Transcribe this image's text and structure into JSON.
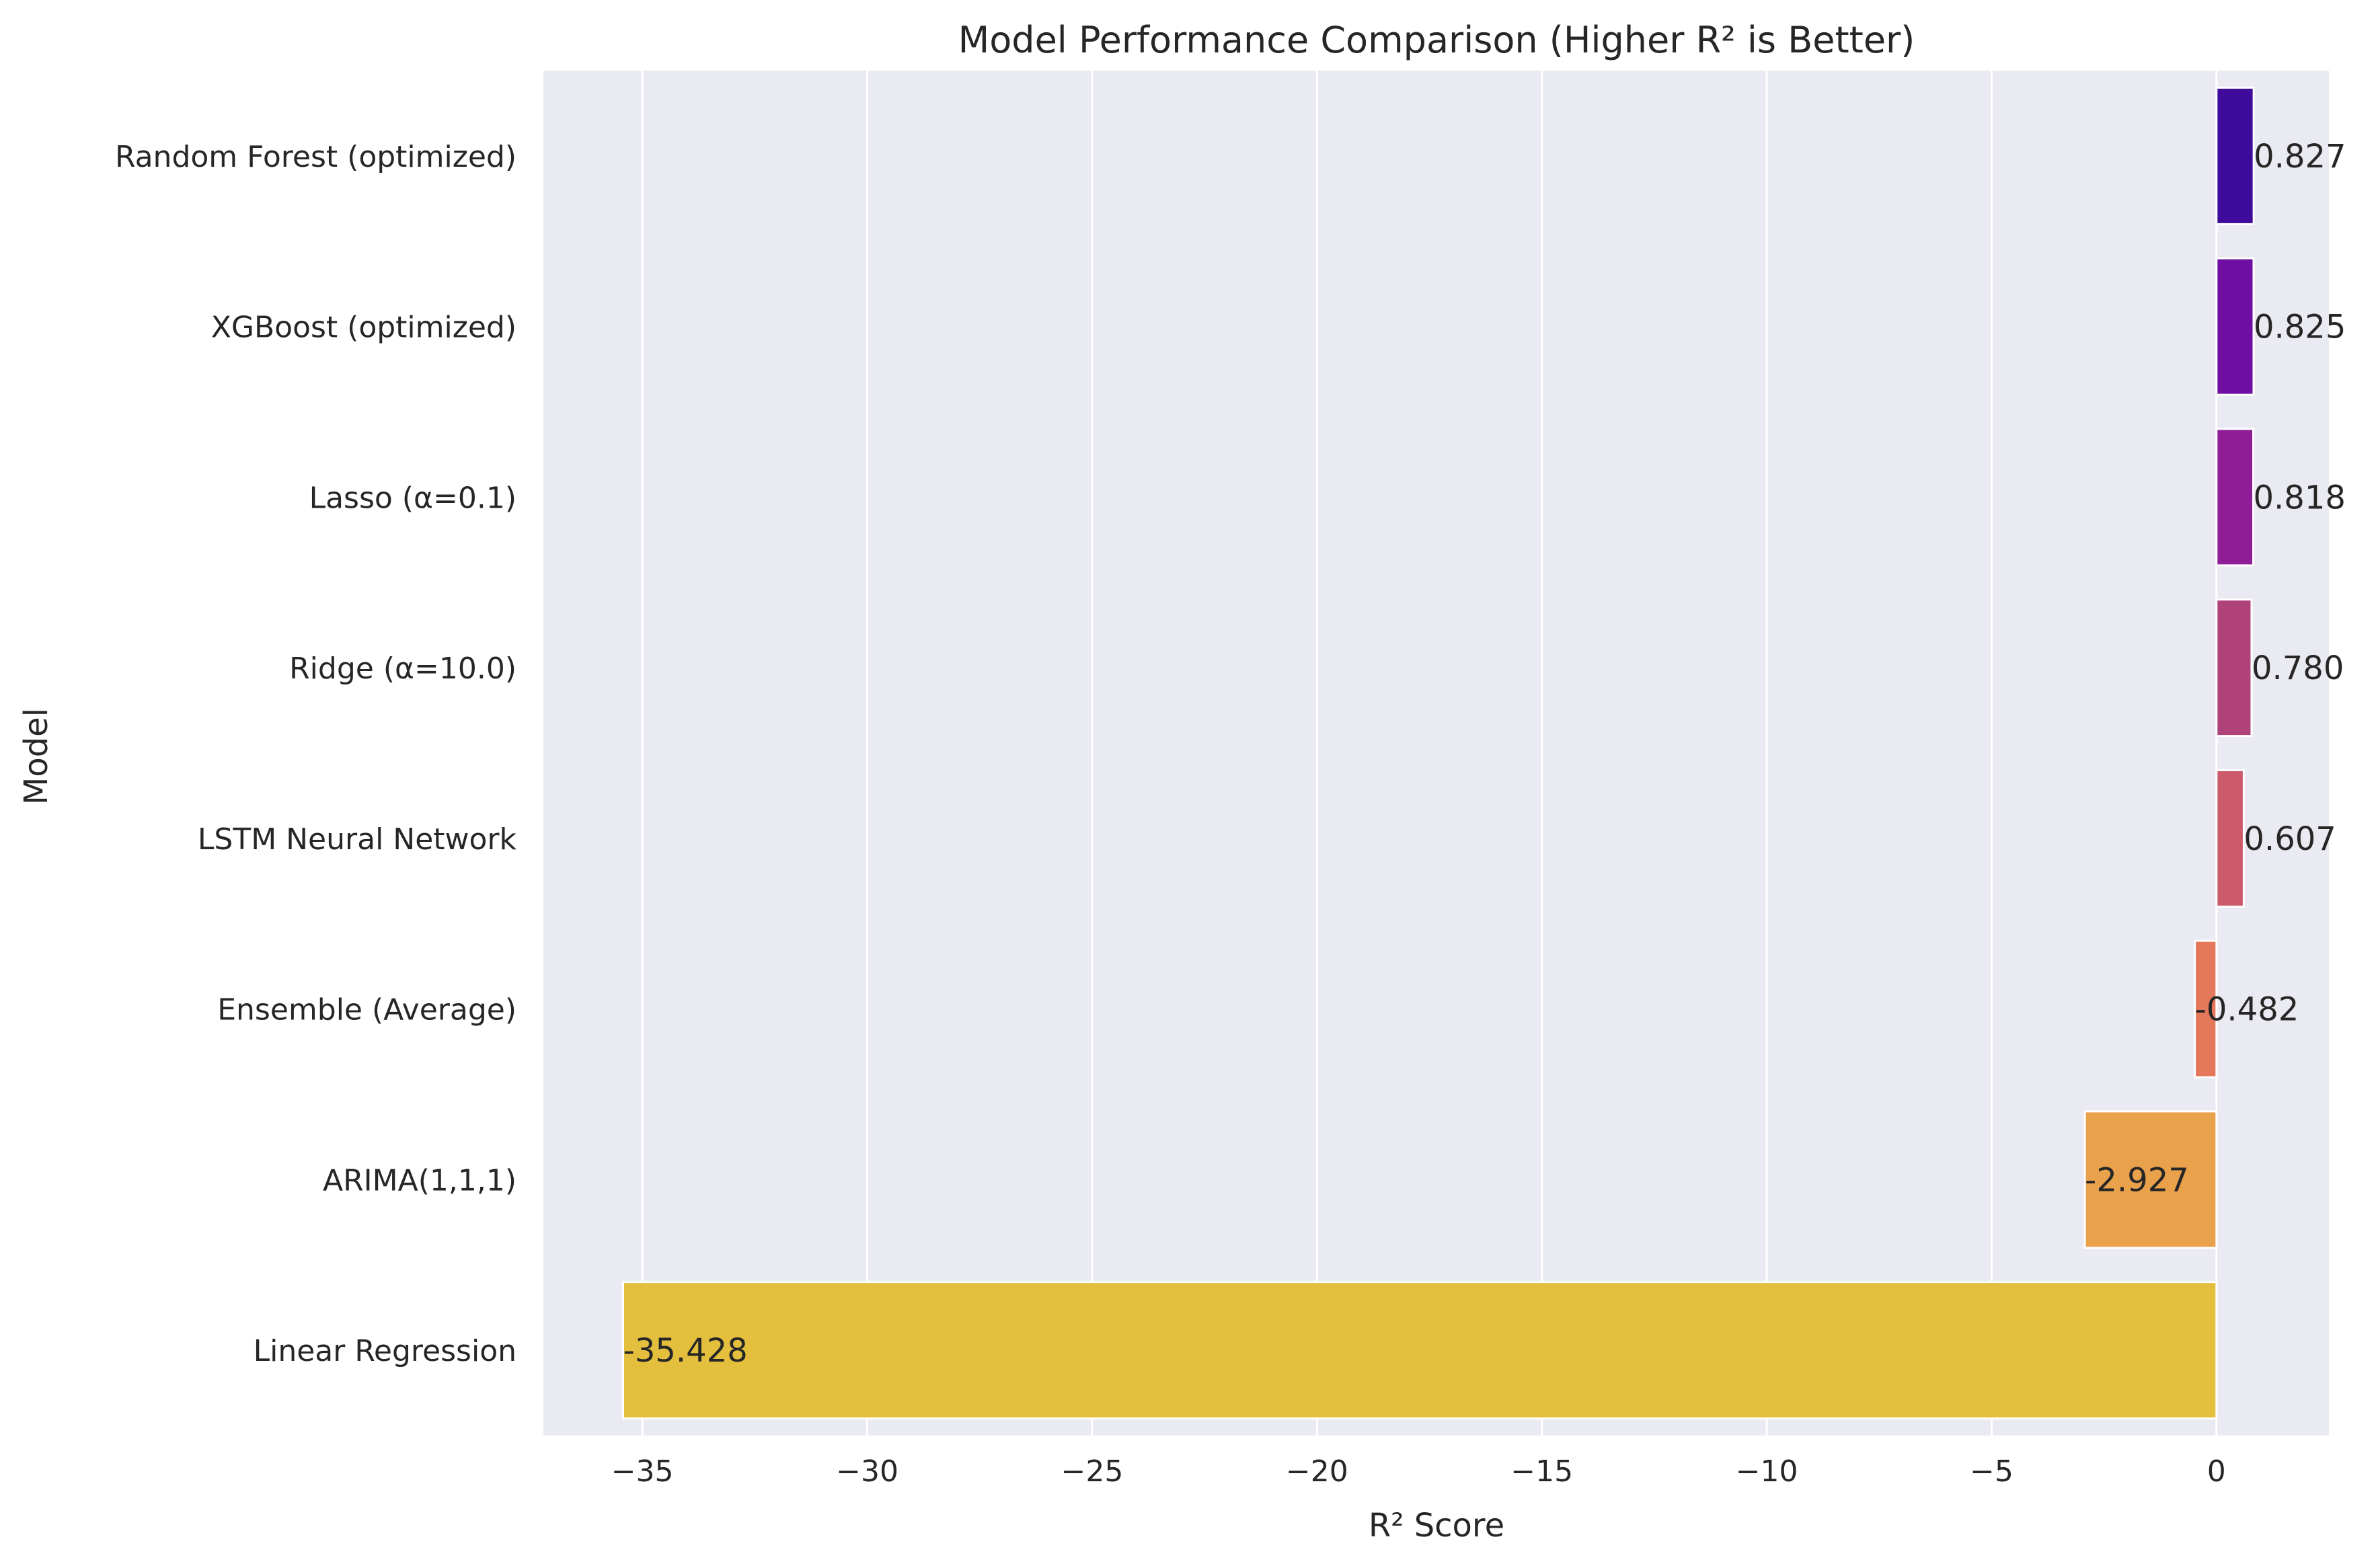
{
  "chart_data": {
    "type": "bar",
    "orientation": "horizontal",
    "title": "Model Performance Comparison (Higher R² is Better)",
    "xlabel": "R² Score",
    "ylabel": "Model",
    "xlim": [
      -37.2,
      2.5
    ],
    "xticks": [
      -35,
      -30,
      -25,
      -20,
      -15,
      -10,
      -5,
      0
    ],
    "xtick_labels": [
      "−35",
      "−30",
      "−25",
      "−20",
      "−15",
      "−10",
      "−5",
      "0"
    ],
    "grid": true,
    "legend": "none",
    "categories": [
      "Random Forest (optimized)",
      "XGBoost (optimized)",
      "Lasso (α=0.1)",
      "Ridge (α=10.0)",
      "LSTM Neural Network",
      "Ensemble (Average)",
      "ARIMA(1,1,1)",
      "Linear Regression"
    ],
    "values": [
      0.827,
      0.825,
      0.818,
      0.78,
      0.607,
      -0.482,
      -2.927,
      -35.428
    ],
    "data_labels": [
      "0.827",
      "0.825",
      "0.818",
      "0.780",
      "0.607",
      "-0.482",
      "-2.927",
      "-35.428"
    ],
    "colors": [
      "#3e0b9a",
      "#6e0ea2",
      "#8f1d97",
      "#b0427a",
      "#cc5a6a",
      "#e5785a",
      "#e9a14c",
      "#e4bf3e"
    ],
    "background_color": "#eaeaf2",
    "grid_color": "#ffffff"
  }
}
